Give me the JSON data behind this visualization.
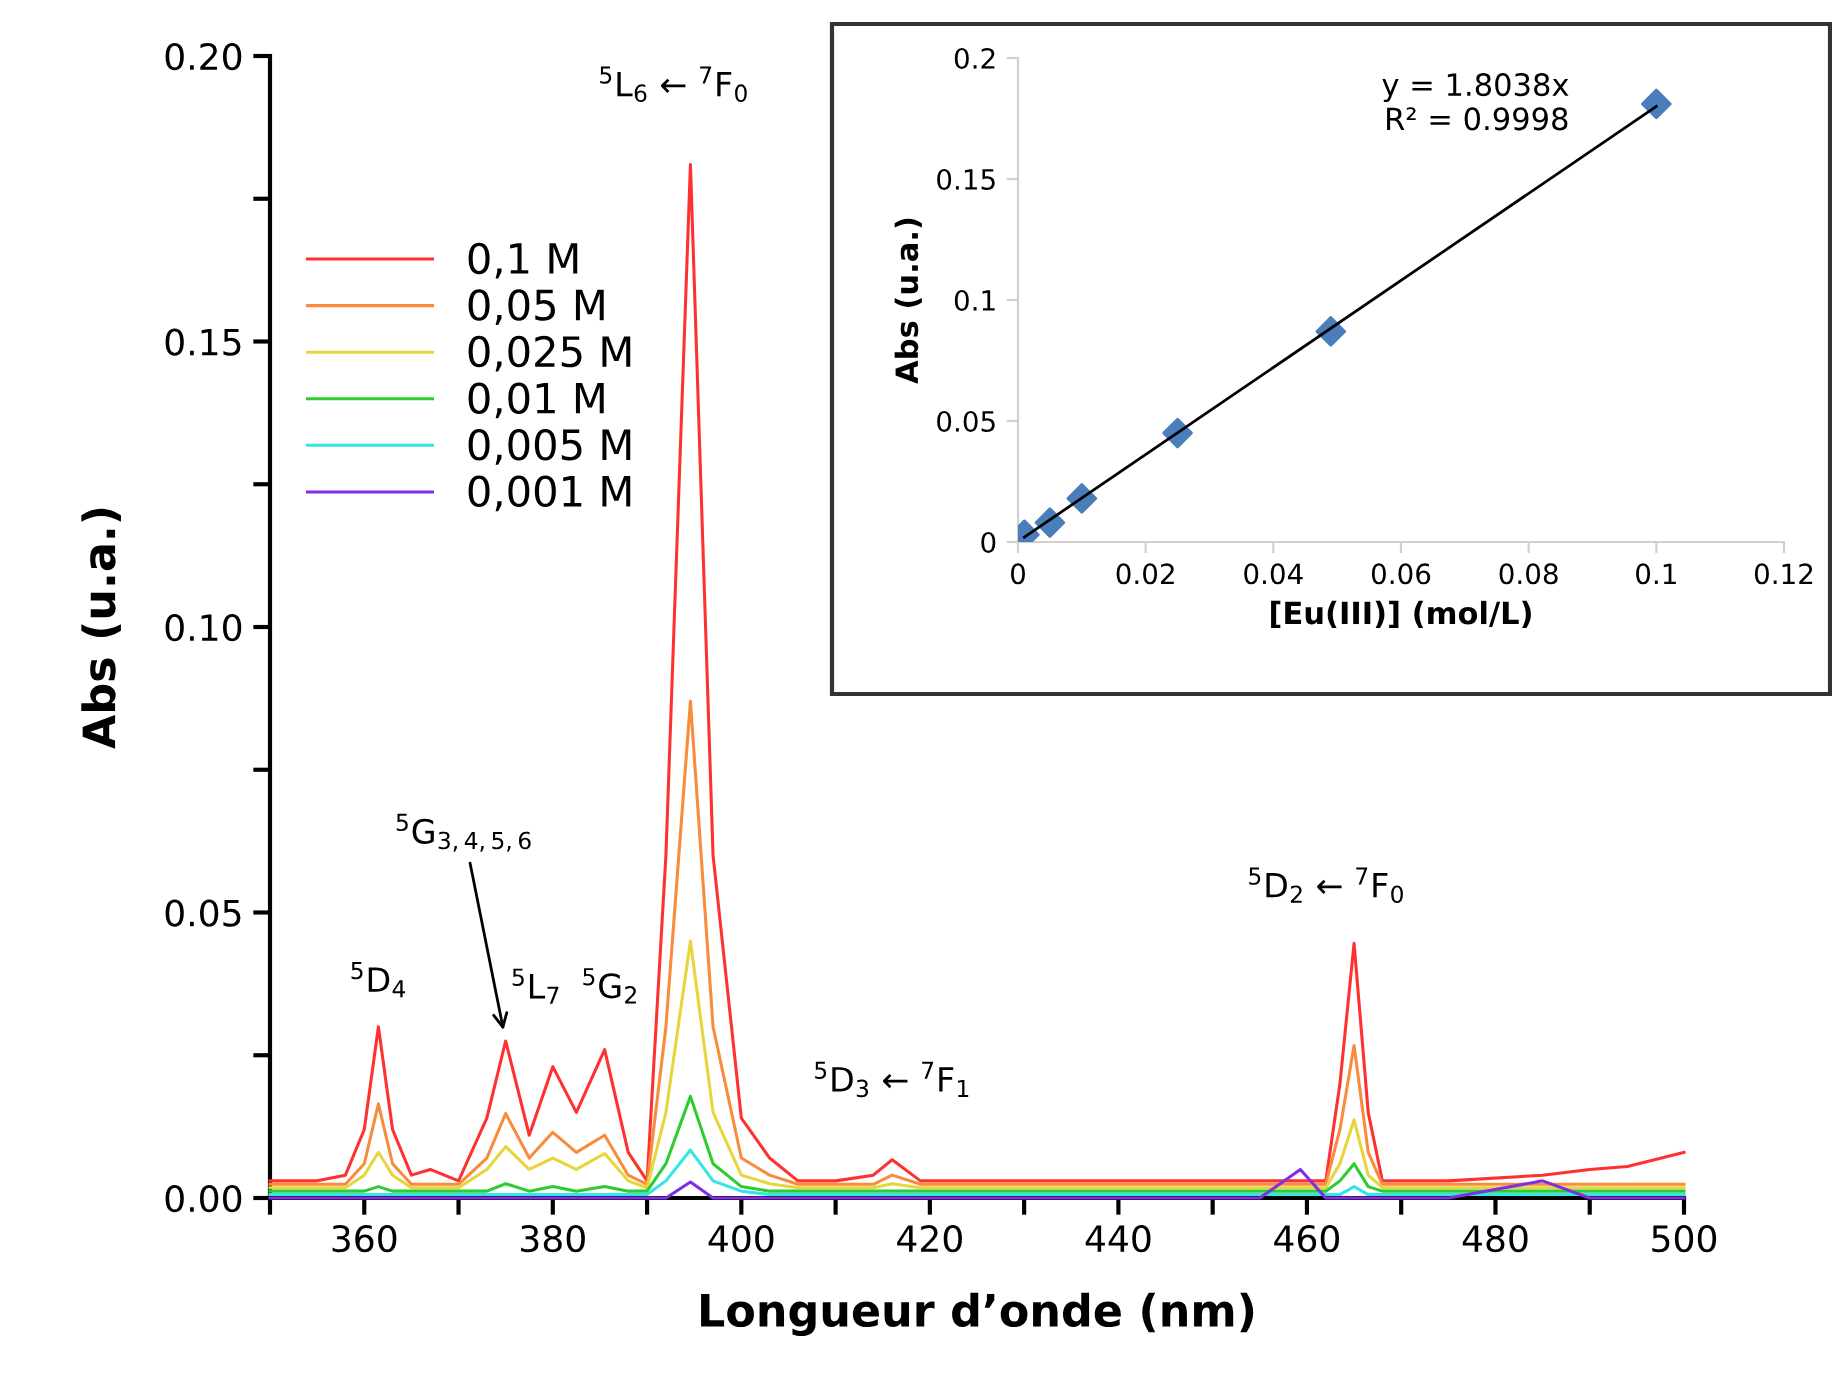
{
  "chart_data": [
    {
      "type": "line",
      "xlabel": "Longueur d’onde (nm)",
      "ylabel": "Abs (u.a.)",
      "x": [
        350,
        355,
        358,
        360,
        361.5,
        363,
        365,
        367,
        370,
        373,
        375,
        377.5,
        380,
        382.5,
        385.5,
        388,
        390,
        392,
        394.6,
        397,
        400,
        403,
        406,
        410,
        414,
        416,
        419,
        425,
        435,
        445,
        455,
        459.3,
        462,
        463.5,
        465,
        466.5,
        468,
        475,
        485,
        490,
        494,
        500
      ],
      "series": [
        {
          "name": "0,1 M",
          "color": "#ff3030",
          "values": [
            0.003,
            0.003,
            0.004,
            0.012,
            0.03,
            0.012,
            0.004,
            0.005,
            0.003,
            0.014,
            0.0275,
            0.011,
            0.023,
            0.015,
            0.026,
            0.008,
            0.003,
            0.06,
            0.181,
            0.06,
            0.014,
            0.007,
            0.003,
            0.003,
            0.004,
            0.0067,
            0.003,
            0.003,
            0.003,
            0.003,
            0.003,
            0.003,
            0.003,
            0.02,
            0.0446,
            0.015,
            0.003,
            0.003,
            0.004,
            0.005,
            0.0055,
            0.008
          ]
        },
        {
          "name": "0,05 M",
          "color": "#f98b3c",
          "values": [
            0.0024,
            0.0024,
            0.0024,
            0.006,
            0.0165,
            0.006,
            0.0024,
            0.0024,
            0.0024,
            0.007,
            0.0148,
            0.007,
            0.0115,
            0.008,
            0.011,
            0.004,
            0.0024,
            0.03,
            0.087,
            0.03,
            0.007,
            0.004,
            0.0024,
            0.0024,
            0.0024,
            0.004,
            0.0024,
            0.0024,
            0.0024,
            0.0024,
            0.0024,
            0.0024,
            0.0024,
            0.012,
            0.0267,
            0.008,
            0.0024,
            0.0024,
            0.0024,
            0.0024,
            0.0024,
            0.0024
          ]
        },
        {
          "name": "0,025 M",
          "color": "#e8d53c",
          "values": [
            0.0018,
            0.0018,
            0.0018,
            0.004,
            0.008,
            0.004,
            0.0018,
            0.0018,
            0.0018,
            0.005,
            0.009,
            0.005,
            0.007,
            0.005,
            0.0078,
            0.003,
            0.0018,
            0.015,
            0.045,
            0.015,
            0.004,
            0.0025,
            0.0018,
            0.0018,
            0.0018,
            0.0025,
            0.0018,
            0.0018,
            0.0018,
            0.0018,
            0.0018,
            0.0018,
            0.0018,
            0.006,
            0.0137,
            0.004,
            0.0018,
            0.0018,
            0.0018,
            0.0018,
            0.0018,
            0.0018
          ]
        },
        {
          "name": "0,01 M",
          "color": "#2ecc2e",
          "values": [
            0.0012,
            0.0012,
            0.0012,
            0.0012,
            0.002,
            0.0012,
            0.0012,
            0.0012,
            0.0012,
            0.0012,
            0.0025,
            0.0012,
            0.002,
            0.0012,
            0.002,
            0.0012,
            0.0012,
            0.006,
            0.0178,
            0.006,
            0.002,
            0.0012,
            0.0012,
            0.0012,
            0.0012,
            0.0012,
            0.0012,
            0.0012,
            0.0012,
            0.0012,
            0.0012,
            0.0012,
            0.0012,
            0.003,
            0.006,
            0.002,
            0.0012,
            0.0012,
            0.0012,
            0.0012,
            0.0012,
            0.0012
          ]
        },
        {
          "name": "0,005 M",
          "color": "#33e6e6",
          "values": [
            0.0006,
            0.0006,
            0.0006,
            0.0006,
            0.0006,
            0.0006,
            0.0006,
            0.0006,
            0.0006,
            0.0006,
            0.0006,
            0.0006,
            0.0006,
            0.0006,
            0.0006,
            0.0006,
            0.0006,
            0.003,
            0.0084,
            0.003,
            0.0012,
            0.0006,
            0.0006,
            0.0006,
            0.0006,
            0.0006,
            0.0006,
            0.0006,
            0.0006,
            0.0006,
            0.0006,
            0.0006,
            0.0006,
            0.0006,
            0.002,
            0.0006,
            0.0006,
            0.0006,
            0.0006,
            0.0006,
            0.0006,
            0.0006
          ]
        },
        {
          "name": "0,001 M",
          "color": "#7f2fe0",
          "values": [
            0,
            0,
            0,
            0,
            0,
            0,
            0,
            0,
            0,
            0,
            0,
            0,
            0,
            0,
            0,
            0,
            0,
            0,
            0.0028,
            0,
            0,
            0,
            0,
            0,
            0,
            0,
            0,
            0,
            0,
            0,
            0,
            0.005,
            0,
            0,
            0,
            0,
            0,
            0,
            0.003,
            0,
            0,
            0
          ]
        }
      ],
      "xlim": [
        350,
        500
      ],
      "xticks": [
        {
          "value": 350,
          "label": null
        },
        360,
        {
          "value": 370,
          "label": null
        },
        380,
        {
          "value": 390,
          "label": null
        },
        400,
        {
          "value": 410,
          "label": null
        },
        420,
        {
          "value": 430,
          "label": null
        },
        440,
        {
          "value": 450,
          "label": null
        },
        460,
        {
          "value": 470,
          "label": null
        },
        480,
        {
          "value": 490,
          "label": null
        },
        500
      ],
      "ylim": [
        0,
        0.2
      ],
      "yticks": [
        {
          "value": 0,
          "label": "0.00"
        },
        {
          "value": 0.025,
          "label": null
        },
        {
          "value": 0.05,
          "label": "0.05"
        },
        {
          "value": 0.075,
          "label": null
        },
        {
          "value": 0.1,
          "label": "0.10"
        },
        {
          "value": 0.125,
          "label": null
        },
        {
          "value": 0.15,
          "label": "0.15"
        },
        {
          "value": 0.175,
          "label": null
        },
        {
          "value": 0.2,
          "label": "0.20"
        }
      ],
      "legend": "top left",
      "annotations": [
        {
          "text": "$^{5}$D$_{4}$",
          "x": 361.5,
          "y": 0.03
        },
        {
          "text": "$^{5}$G$_{3,4,5,6}$",
          "x": 375,
          "y": 0.0275
        },
        {
          "text": "$^{5}$L$_{7}$",
          "x": 380,
          "y": 0.023
        },
        {
          "text": "$^{5}$G$_{2}$",
          "x": 385.5,
          "y": 0.026
        },
        {
          "text": "$^{5}$L$_{6}$ ← $^{7}$F$_{0}$",
          "x": 394.6,
          "y": 0.181
        },
        {
          "text": "$^{5}$D$_{3}$ ← $^{7}$F$_{1}$",
          "x": 416,
          "y": 0.0067
        },
        {
          "text": "$^{5}$D$_{2}$ ← $^{7}$F$_{0}$",
          "x": 465,
          "y": 0.0446
        }
      ]
    },
    {
      "type": "scatter",
      "xlabel": "[Eu(III)] (mol/L)",
      "ylabel": "Abs (u.a.)",
      "marker": "diamond",
      "series": [
        {
          "color": "#4a7ebb",
          "x": [
            0.001,
            0.005,
            0.01,
            0.025,
            0.049,
            0.1
          ],
          "values": [
            0.003,
            0.008,
            0.018,
            0.045,
            0.087,
            0.181
          ]
        },
        {
          "type": "line",
          "marker": "none",
          "color": "#000000",
          "x": [
            0.001,
            0.1
          ],
          "values": [
            0.002,
            0.18
          ]
        }
      ],
      "xlim": [
        0,
        0.12
      ],
      "xticks": [
        0,
        0.02,
        0.04,
        0.06,
        0.08,
        0.1,
        0.12
      ],
      "ylim": [
        0,
        0.2
      ],
      "yticks": [
        0,
        0.05,
        0.1,
        0.15,
        0.2
      ],
      "annotations": [
        "y = 1.8038x\nR² = 0.9998"
      ]
    }
  ]
}
